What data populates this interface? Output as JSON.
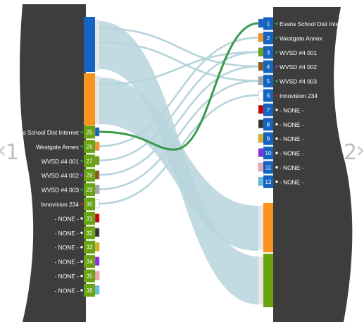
{
  "left_panel": {
    "number": "1",
    "rows": [
      {
        "id": "25",
        "label": "Evans School Dist Internet",
        "dot": "#2e9e3a",
        "color": "#1565c0"
      },
      {
        "id": "26",
        "label": "Westgate Annex",
        "dot": "#2e9e3a",
        "color": "#f7931e"
      },
      {
        "id": "27",
        "label": "WVSD #4 001",
        "dot": "#2e9e3a",
        "color": "#6aa312"
      },
      {
        "id": "28",
        "label": "WVSD #4 002",
        "dot": "#9b30d9",
        "color": "#8b5a14"
      },
      {
        "id": "29",
        "label": "WVSD #4 003",
        "dot": "#2e9e3a",
        "color": "#a5a5a5"
      },
      {
        "id": "30",
        "label": "Innovision 234",
        "dot": "#d21f1f",
        "color": "#ffffff"
      },
      {
        "id": "31",
        "label": "- NONE -",
        "dot": "#ffffff",
        "color": "#cc0000"
      },
      {
        "id": "32",
        "label": "- NONE -",
        "dot": "#ffffff",
        "color": "#333333"
      },
      {
        "id": "33",
        "label": "- NONE -",
        "dot": "#ffffff",
        "color": "#d9b21f"
      },
      {
        "id": "34",
        "label": "- NONE -",
        "dot": "#ffffff",
        "color": "#8a2be2"
      },
      {
        "id": "35",
        "label": "- NONE -",
        "dot": "#ffffff",
        "color": "#f4a6b0"
      },
      {
        "id": "36",
        "label": "- NONE -",
        "dot": "#ffffff",
        "color": "#5bc0de"
      }
    ]
  },
  "right_panel": {
    "number": "2",
    "rows": [
      {
        "id": "1",
        "label": "Evans School Dist Internet",
        "dot": "#2e9e3a",
        "color": "#1565c0"
      },
      {
        "id": "2",
        "label": "Westgate Annex",
        "dot": "#2e9e3a",
        "color": "#f7931e"
      },
      {
        "id": "3",
        "label": "WVSD #4 001",
        "dot": "#2e9e3a",
        "color": "#6aa312"
      },
      {
        "id": "4",
        "label": "WVSD #4 002",
        "dot": "#9b30d9",
        "color": "#8b5a14"
      },
      {
        "id": "5",
        "label": "WVSD #4 003",
        "dot": "#2e9e3a",
        "color": "#a5a5a5"
      },
      {
        "id": "6",
        "label": "Innovision 234",
        "dot": "#d21f1f",
        "color": "#ffffff"
      },
      {
        "id": "7",
        "label": "- NONE -",
        "dot": "#ffffff",
        "color": "#cc0000"
      },
      {
        "id": "8",
        "label": "- NONE -",
        "dot": "#ffffff",
        "color": "#333333"
      },
      {
        "id": "9",
        "label": "- NONE -",
        "dot": "#ffffff",
        "color": "#d9b21f"
      },
      {
        "id": "10",
        "label": "- NONE -",
        "dot": "#ffffff",
        "color": "#8a2be2"
      },
      {
        "id": "11",
        "label": "- NONE -",
        "dot": "#ffffff",
        "color": "#f4a6b0"
      },
      {
        "id": "12",
        "label": "- NONE -",
        "dot": "#ffffff",
        "color": "#5bc0de"
      }
    ]
  },
  "nav": {
    "prev_arrow": "‹",
    "next_arrow": "›"
  },
  "colors": {
    "panel": "#3d3d3d",
    "flow": "#b7d4dc",
    "highlight": "#3a9a4a"
  }
}
